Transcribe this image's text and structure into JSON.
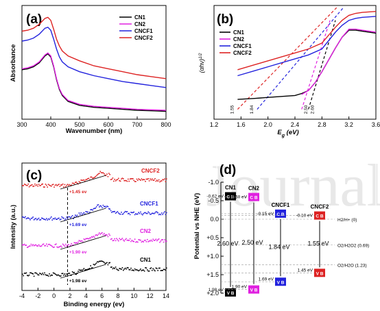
{
  "chart_data": [
    {
      "panel": "(a)",
      "type": "line",
      "xlabel": "Wavenumber (nm)",
      "ylabel": "Absorbance",
      "xlim": [
        300,
        800
      ],
      "xticks": [
        "300",
        "400",
        "500",
        "600",
        "700",
        "800"
      ],
      "legend": "top-right",
      "series": [
        {
          "name": "CN1",
          "color": "#000000",
          "x": [
            300,
            320,
            340,
            360,
            380,
            390,
            400,
            410,
            420,
            430,
            440,
            460,
            500,
            550,
            600,
            650,
            700,
            750,
            800
          ],
          "y": [
            0.5,
            0.51,
            0.53,
            0.57,
            0.64,
            0.66,
            0.63,
            0.53,
            0.4,
            0.3,
            0.24,
            0.18,
            0.14,
            0.12,
            0.11,
            0.1,
            0.09,
            0.085,
            0.08
          ]
        },
        {
          "name": "CN2",
          "color": "#e020e0",
          "x": [
            300,
            320,
            340,
            360,
            380,
            390,
            400,
            410,
            420,
            430,
            440,
            460,
            500,
            550,
            600,
            650,
            700,
            750,
            800
          ],
          "y": [
            0.51,
            0.52,
            0.54,
            0.58,
            0.65,
            0.67,
            0.64,
            0.54,
            0.41,
            0.31,
            0.25,
            0.19,
            0.15,
            0.13,
            0.12,
            0.11,
            0.1,
            0.095,
            0.09
          ]
        },
        {
          "name": "CNCF1",
          "color": "#2222dd",
          "x": [
            300,
            320,
            340,
            360,
            380,
            390,
            400,
            410,
            420,
            430,
            440,
            460,
            500,
            550,
            600,
            650,
            700,
            750,
            800
          ],
          "y": [
            0.79,
            0.8,
            0.82,
            0.86,
            0.92,
            0.93,
            0.9,
            0.81,
            0.71,
            0.63,
            0.58,
            0.53,
            0.48,
            0.44,
            0.41,
            0.38,
            0.36,
            0.34,
            0.32
          ]
        },
        {
          "name": "CNCF2",
          "color": "#dd2222",
          "x": [
            300,
            320,
            340,
            360,
            380,
            390,
            400,
            410,
            420,
            430,
            440,
            460,
            500,
            550,
            600,
            650,
            700,
            750,
            800
          ],
          "y": [
            0.89,
            0.9,
            0.92,
            0.96,
            1.02,
            1.03,
            1.0,
            0.91,
            0.81,
            0.74,
            0.69,
            0.64,
            0.59,
            0.54,
            0.51,
            0.48,
            0.45,
            0.43,
            0.41
          ]
        }
      ]
    },
    {
      "panel": "(b)",
      "type": "line",
      "xlabel": "E_g (eV)",
      "ylabel": "(αhν)^1/2",
      "xlim": [
        1.2,
        3.6
      ],
      "xticks": [
        "1.2",
        "1.6",
        "2.0",
        "2.4",
        "2.8",
        "3.2",
        "3.6"
      ],
      "legend": "top-left",
      "annotations": [
        "1.55",
        "1.84",
        "2.50",
        "2.60"
      ],
      "series": [
        {
          "name": "CN1",
          "color": "#000000",
          "x": [
            1.55,
            1.8,
            2.0,
            2.2,
            2.4,
            2.5,
            2.6,
            2.7,
            2.8,
            2.9,
            3.0,
            3.1,
            3.2,
            3.3,
            3.4,
            3.6
          ],
          "y": [
            0.2,
            0.21,
            0.22,
            0.23,
            0.24,
            0.26,
            0.29,
            0.37,
            0.48,
            0.6,
            0.72,
            0.83,
            0.9,
            0.9,
            0.89,
            0.87
          ]
        },
        {
          "name": "CN2",
          "color": "#e020e0",
          "x": [
            2.5,
            2.6,
            2.7,
            2.8,
            2.9,
            3.0,
            3.1,
            3.2,
            3.3,
            3.4,
            3.6
          ],
          "y": [
            0.25,
            0.29,
            0.37,
            0.48,
            0.6,
            0.72,
            0.83,
            0.91,
            0.91,
            0.9,
            0.88
          ]
        },
        {
          "name": "CNCF1",
          "color": "#2222dd",
          "x": [
            1.55,
            1.8,
            2.0,
            2.2,
            2.4,
            2.6,
            2.8,
            3.0,
            3.1,
            3.2,
            3.3,
            3.4,
            3.6
          ],
          "y": [
            0.44,
            0.49,
            0.53,
            0.57,
            0.61,
            0.65,
            0.71,
            0.88,
            0.95,
            1.0,
            1.02,
            1.03,
            1.04
          ]
        },
        {
          "name": "CNCF2",
          "color": "#dd2222",
          "x": [
            1.55,
            1.8,
            2.0,
            2.2,
            2.4,
            2.6,
            2.8,
            3.0,
            3.1,
            3.2,
            3.3,
            3.4,
            3.6
          ],
          "y": [
            0.5,
            0.55,
            0.59,
            0.63,
            0.67,
            0.71,
            0.77,
            0.93,
            1.0,
            1.05,
            1.07,
            1.08,
            1.09
          ]
        }
      ]
    },
    {
      "panel": "(c)",
      "type": "scatter",
      "xlabel": "Binding energy (ev)",
      "ylabel": "Intensity (a.u.)",
      "xlim": [
        -4,
        14
      ],
      "xticks": [
        "-4",
        "-2",
        "0",
        "2",
        "4",
        "6",
        "8",
        "10",
        "12",
        "14"
      ],
      "series": [
        {
          "name": "CNCF2",
          "color": "#dd2222",
          "offset": 3,
          "edge": "+1.45 ev"
        },
        {
          "name": "CNCF1",
          "color": "#2222dd",
          "offset": 2,
          "edge": "+1.69 ev"
        },
        {
          "name": "CN2",
          "color": "#e020e0",
          "offset": 1,
          "edge": "+1.90 ev"
        },
        {
          "name": "CN1",
          "color": "#000000",
          "offset": 0,
          "edge": "+1.98 ev"
        }
      ]
    },
    {
      "panel": "(d)",
      "type": "diagram",
      "ylabel": "Potential vs NHE (eV)",
      "ylim": [
        -1.0,
        2.0
      ],
      "yticks": [
        "-1.0",
        "-0.5",
        "0.0",
        "+0.5",
        "+1.0",
        "+1.5",
        "+2.0"
      ],
      "samples": [
        {
          "name": "CN1",
          "cb": -0.62,
          "vb": 1.98,
          "gap": "2.60 eV",
          "cb_label": "-0.62 eV",
          "vb_label": "1.98 eV",
          "color": "#000000"
        },
        {
          "name": "CN2",
          "cb": -0.6,
          "vb": 1.9,
          "gap": "2.50 eV",
          "cb_label": "-0.60 eV",
          "vb_label": "1.90 eV",
          "color": "#e020e0"
        },
        {
          "name": "CNCF1",
          "cb": -0.15,
          "vb": 1.69,
          "gap": "1.84 eV",
          "cb_label": "-0.15 eV",
          "vb_label": "1.69 eV",
          "color": "#2222dd"
        },
        {
          "name": "CNCF2",
          "cb": -0.1,
          "vb": 1.45,
          "gap": "1.55 eV",
          "cb_label": "-0.10 eV",
          "vb_label": "1.45 eV",
          "color": "#dd2222"
        }
      ],
      "band_labels": {
        "cb": "C B",
        "vb": "V B"
      },
      "references": [
        {
          "label": "H2/H+ (0)",
          "value": 0.0
        },
        {
          "label": "O2/H2O2 (0.69)",
          "value": 0.69
        },
        {
          "label": "O2/H2O (1.23)",
          "value": 1.23
        }
      ]
    }
  ]
}
